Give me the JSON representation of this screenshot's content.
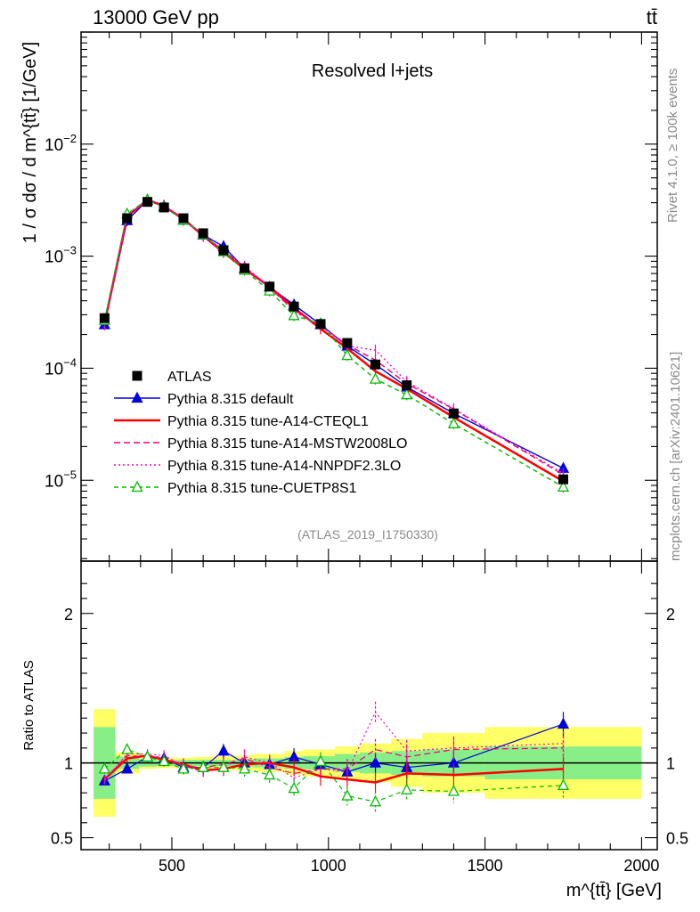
{
  "header": {
    "energy_label": "13000 GeV pp",
    "process_label": "tt̄"
  },
  "side_text": {
    "rivet": "Rivet 4.1.0, ≥ 100k events",
    "mcplots": "mcplots.cern.ch [arXiv:2401.10621]"
  },
  "chart_data": [
    {
      "type": "line",
      "panel": "main",
      "title": "Resolved l+jets",
      "watermark": "(ATLAS_2019_I1750330)",
      "xlabel": "m^{tt̄} [GeV]",
      "ylabel": "1 / σ dσ / d m^{tt̄} [1/GeV]",
      "yscale": "log",
      "xlim": [
        210,
        2050
      ],
      "ylim": [
        1.9e-06,
        0.1
      ],
      "x_ticks": [
        500,
        1000,
        1500,
        2000
      ],
      "y_ticks": [
        {
          "value": 0.01,
          "base": "10",
          "exp": "−2"
        },
        {
          "value": 0.001,
          "base": "10",
          "exp": "−3"
        },
        {
          "value": 0.0001,
          "base": "10",
          "exp": "−4"
        },
        {
          "value": 1e-05,
          "base": "10",
          "exp": "−5"
        }
      ],
      "x": [
        285,
        357,
        422,
        475,
        537,
        600,
        665,
        732,
        812,
        890,
        975,
        1060,
        1150,
        1250,
        1400,
        1750
      ],
      "series": [
        {
          "name": "ATLAS",
          "color": "#000000",
          "dash": "none",
          "marker": "square",
          "values": [
            0.00028,
            0.00218,
            0.00305,
            0.00272,
            0.00218,
            0.0016,
            0.00113,
            0.00078,
            0.000535,
            0.000355,
            0.000248,
            0.000168,
            0.000108,
            7.05e-05,
            3.95e-05,
            1.02e-05
          ]
        },
        {
          "name": "Pythia 8.315 default",
          "color": "#0000dd",
          "dash": "none",
          "marker": "triangle-filled",
          "values": [
            0.000245,
            0.00208,
            0.00315,
            0.0028,
            0.0021,
            0.00155,
            0.00122,
            0.00078,
            0.00053,
            0.000368,
            0.000245,
            0.000158,
            0.000108,
            6.8e-05,
            3.95e-05,
            1.28e-05
          ]
        },
        {
          "name": "Pythia 8.315 tune-A14-CTEQL1",
          "color": "#ff0000",
          "dash": "none",
          "marker": "none",
          "values": [
            0.000248,
            0.00225,
            0.0032,
            0.00278,
            0.00215,
            0.00152,
            0.00108,
            0.00077,
            0.000535,
            0.000345,
            0.000225,
            0.00015,
            9.4e-05,
            6.55e-05,
            3.65e-05,
            9.8e-06
          ]
        },
        {
          "name": "Pythia 8.315 tune-A14-MSTW2008LO",
          "color": "#ee0077",
          "dash": "7,4",
          "marker": "none",
          "values": [
            0.00025,
            0.00228,
            0.00318,
            0.00282,
            0.00214,
            0.00155,
            0.00112,
            0.0008,
            0.00052,
            0.00033,
            0.000238,
            0.000162,
            0.000118,
            7.3e-05,
            4.3e-05,
            1.12e-05
          ]
        },
        {
          "name": "Pythia 8.315 tune-A14-NNPDF2.3LO",
          "color": "#ff00cc",
          "dash": "2,3",
          "marker": "none",
          "values": [
            0.000245,
            0.00232,
            0.00322,
            0.00285,
            0.00213,
            0.0015,
            0.0011,
            0.00081,
            0.000535,
            0.00032,
            0.000238,
            0.000158,
            0.000145,
            7.6e-05,
            4.35e-05,
            1.15e-05
          ]
        },
        {
          "name": "Pythia 8.315 tune-CUETP8S1",
          "color": "#00bb00",
          "dash": "5,4",
          "marker": "triangle-open",
          "values": [
            0.000268,
            0.00238,
            0.00318,
            0.00275,
            0.0021,
            0.00156,
            0.0011,
            0.00075,
            0.00049,
            0.000295,
            0.00025,
            0.00013,
            8e-05,
            5.8e-05,
            3.2e-05,
            8.7e-06
          ]
        }
      ]
    },
    {
      "type": "line",
      "panel": "ratio",
      "ylabel": "Ratio to ATLAS",
      "ylim": [
        0.42,
        2.35
      ],
      "y_ticks": [
        0.5,
        1,
        2
      ],
      "x": [
        285,
        357,
        422,
        475,
        537,
        600,
        665,
        732,
        812,
        890,
        975,
        1060,
        1150,
        1250,
        1400,
        1750
      ],
      "bands": {
        "edges": [
          250,
          320,
          395,
          450,
          500,
          570,
          630,
          700,
          760,
          860,
          920,
          1020,
          1100,
          1200,
          1300,
          1500,
          2000
        ],
        "green": [
          0.24,
          0.04,
          0.025,
          0.02,
          0.02,
          0.02,
          0.02,
          0.025,
          0.03,
          0.04,
          0.045,
          0.06,
          0.07,
          0.08,
          0.09,
          0.11
        ],
        "yellow": [
          0.36,
          0.07,
          0.04,
          0.035,
          0.035,
          0.04,
          0.045,
          0.05,
          0.06,
          0.08,
          0.09,
          0.11,
          0.13,
          0.16,
          0.2,
          0.24
        ]
      },
      "series": [
        {
          "name": "Pythia 8.315 default",
          "values": [
            0.88,
            0.96,
            1.04,
            1.03,
            0.97,
            0.97,
            1.08,
            1.0,
            0.99,
            1.04,
            0.99,
            0.94,
            1.0,
            0.97,
            1.0,
            1.26
          ]
        },
        {
          "name": "Pythia 8.315 tune-A14-CTEQL1",
          "values": [
            0.89,
            1.03,
            1.05,
            1.02,
            0.99,
            0.95,
            0.96,
            0.99,
            1.0,
            0.97,
            0.91,
            0.89,
            0.87,
            0.93,
            0.92,
            0.96
          ]
        },
        {
          "name": "Pythia 8.315 tune-A14-MSTW2008LO",
          "values": [
            0.89,
            1.05,
            1.04,
            1.04,
            0.98,
            0.97,
            0.99,
            1.03,
            0.97,
            0.93,
            0.96,
            0.96,
            1.09,
            1.04,
            1.09,
            1.1
          ]
        },
        {
          "name": "Pythia 8.315 tune-A14-NNPDF2.3LO",
          "values": [
            0.88,
            1.06,
            1.06,
            1.05,
            0.98,
            0.94,
            0.97,
            1.04,
            1.0,
            0.9,
            0.96,
            0.94,
            1.34,
            1.08,
            1.1,
            1.13
          ]
        },
        {
          "name": "Pythia 8.315 tune-CUETP8S1",
          "values": [
            0.96,
            1.09,
            1.04,
            1.01,
            0.96,
            0.97,
            0.97,
            0.96,
            0.92,
            0.83,
            1.01,
            0.78,
            0.74,
            0.82,
            0.81,
            0.85
          ]
        }
      ]
    }
  ]
}
